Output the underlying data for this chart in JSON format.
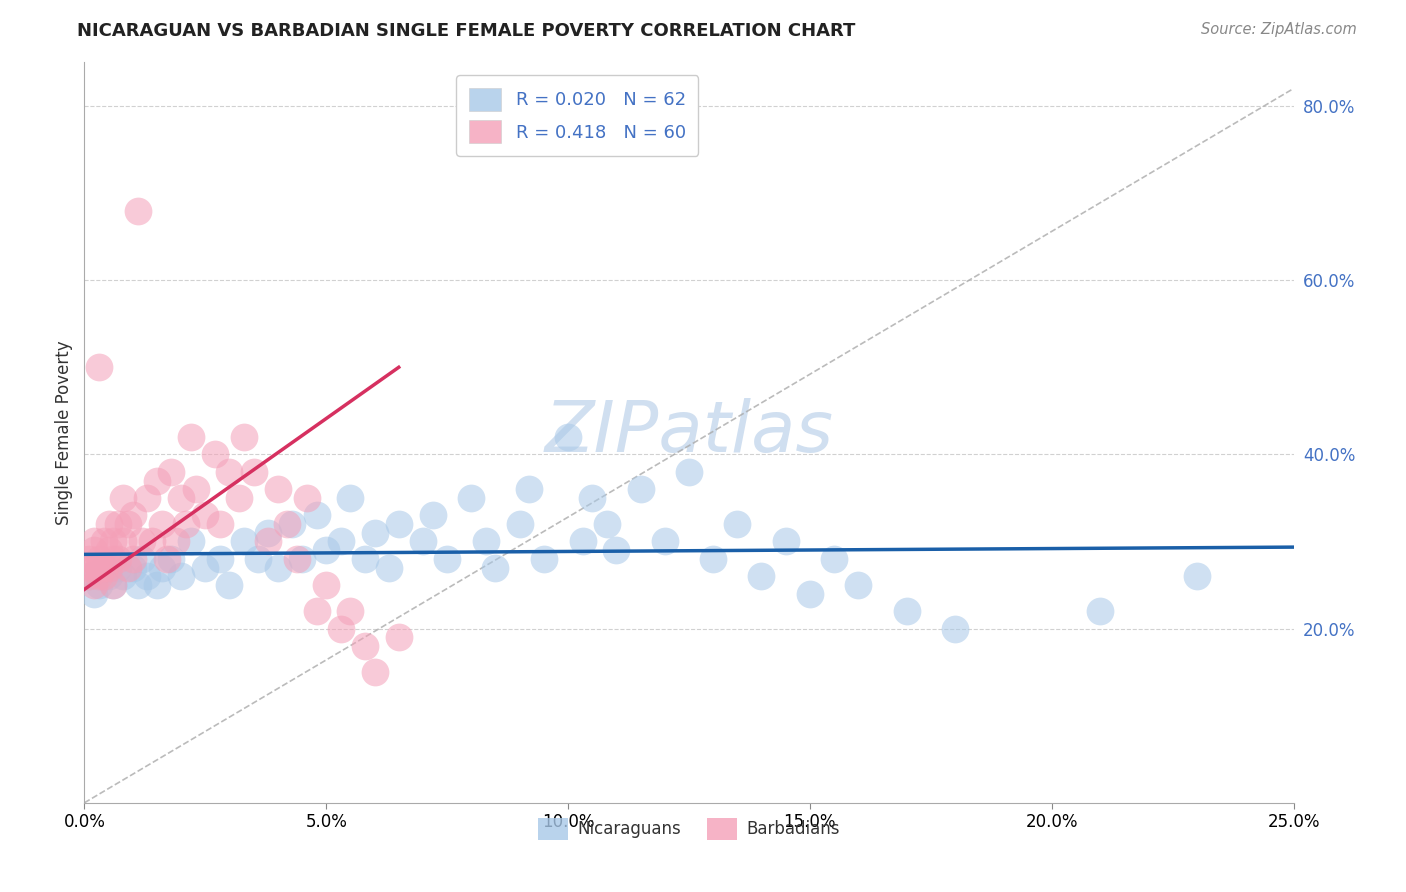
{
  "title": "NICARAGUAN VS BARBADIAN SINGLE FEMALE POVERTY CORRELATION CHART",
  "source": "Source: ZipAtlas.com",
  "ylabel": "Single Female Poverty",
  "xlim": [
    0.0,
    0.25
  ],
  "ylim": [
    0.0,
    0.85
  ],
  "xtick_labels": [
    "0.0%",
    "5.0%",
    "10.0%",
    "15.0%",
    "20.0%",
    "25.0%"
  ],
  "xtick_values": [
    0.0,
    0.05,
    0.1,
    0.15,
    0.2,
    0.25
  ],
  "ytick_labels": [
    "20.0%",
    "40.0%",
    "60.0%",
    "80.0%"
  ],
  "ytick_values": [
    0.2,
    0.4,
    0.6,
    0.8
  ],
  "blue_color": "#a8c8e8",
  "pink_color": "#f4a0b8",
  "blue_line_color": "#1a5fa8",
  "pink_line_color": "#d63060",
  "blue_R": 0.02,
  "blue_N": 62,
  "pink_R": 0.418,
  "pink_N": 60,
  "legend_label_blue": "Nicaraguans",
  "legend_label_pink": "Barbadians",
  "background_color": "#ffffff",
  "grid_color": "#cccccc",
  "watermark_color": "#d0dff0",
  "legend_text_color": "#4472c4",
  "ytick_color": "#4472c4",
  "blue_x": [
    0.001,
    0.002,
    0.003,
    0.004,
    0.005,
    0.006,
    0.007,
    0.008,
    0.01,
    0.011,
    0.012,
    0.013,
    0.015,
    0.016,
    0.018,
    0.02,
    0.022,
    0.025,
    0.028,
    0.03,
    0.033,
    0.036,
    0.038,
    0.04,
    0.043,
    0.045,
    0.048,
    0.05,
    0.053,
    0.055,
    0.058,
    0.06,
    0.063,
    0.065,
    0.07,
    0.072,
    0.075,
    0.08,
    0.083,
    0.085,
    0.09,
    0.092,
    0.095,
    0.1,
    0.103,
    0.105,
    0.108,
    0.11,
    0.115,
    0.12,
    0.125,
    0.13,
    0.135,
    0.14,
    0.145,
    0.15,
    0.155,
    0.16,
    0.17,
    0.18,
    0.21,
    0.23
  ],
  "blue_y": [
    0.26,
    0.24,
    0.25,
    0.27,
    0.26,
    0.25,
    0.27,
    0.26,
    0.27,
    0.25,
    0.28,
    0.26,
    0.25,
    0.27,
    0.28,
    0.26,
    0.3,
    0.27,
    0.28,
    0.25,
    0.3,
    0.28,
    0.31,
    0.27,
    0.32,
    0.28,
    0.33,
    0.29,
    0.3,
    0.35,
    0.28,
    0.31,
    0.27,
    0.32,
    0.3,
    0.33,
    0.28,
    0.35,
    0.3,
    0.27,
    0.32,
    0.36,
    0.28,
    0.42,
    0.3,
    0.35,
    0.32,
    0.29,
    0.36,
    0.3,
    0.38,
    0.28,
    0.32,
    0.26,
    0.3,
    0.24,
    0.28,
    0.25,
    0.22,
    0.2,
    0.22,
    0.26
  ],
  "pink_x": [
    0.001,
    0.001,
    0.001,
    0.002,
    0.002,
    0.002,
    0.002,
    0.003,
    0.003,
    0.003,
    0.003,
    0.004,
    0.004,
    0.004,
    0.005,
    0.005,
    0.005,
    0.006,
    0.006,
    0.006,
    0.007,
    0.007,
    0.008,
    0.008,
    0.009,
    0.009,
    0.01,
    0.01,
    0.011,
    0.012,
    0.013,
    0.014,
    0.015,
    0.016,
    0.017,
    0.018,
    0.019,
    0.02,
    0.021,
    0.022,
    0.023,
    0.025,
    0.027,
    0.028,
    0.03,
    0.032,
    0.033,
    0.035,
    0.038,
    0.04,
    0.042,
    0.044,
    0.046,
    0.048,
    0.05,
    0.053,
    0.055,
    0.058,
    0.06,
    0.065
  ],
  "pink_y": [
    0.27,
    0.26,
    0.28,
    0.3,
    0.27,
    0.25,
    0.29,
    0.26,
    0.28,
    0.27,
    0.5,
    0.27,
    0.3,
    0.26,
    0.29,
    0.27,
    0.32,
    0.28,
    0.3,
    0.25,
    0.32,
    0.28,
    0.35,
    0.3,
    0.27,
    0.32,
    0.33,
    0.28,
    0.68,
    0.3,
    0.35,
    0.3,
    0.37,
    0.32,
    0.28,
    0.38,
    0.3,
    0.35,
    0.32,
    0.42,
    0.36,
    0.33,
    0.4,
    0.32,
    0.38,
    0.35,
    0.42,
    0.38,
    0.3,
    0.36,
    0.32,
    0.28,
    0.35,
    0.22,
    0.25,
    0.2,
    0.22,
    0.18,
    0.15,
    0.19
  ]
}
